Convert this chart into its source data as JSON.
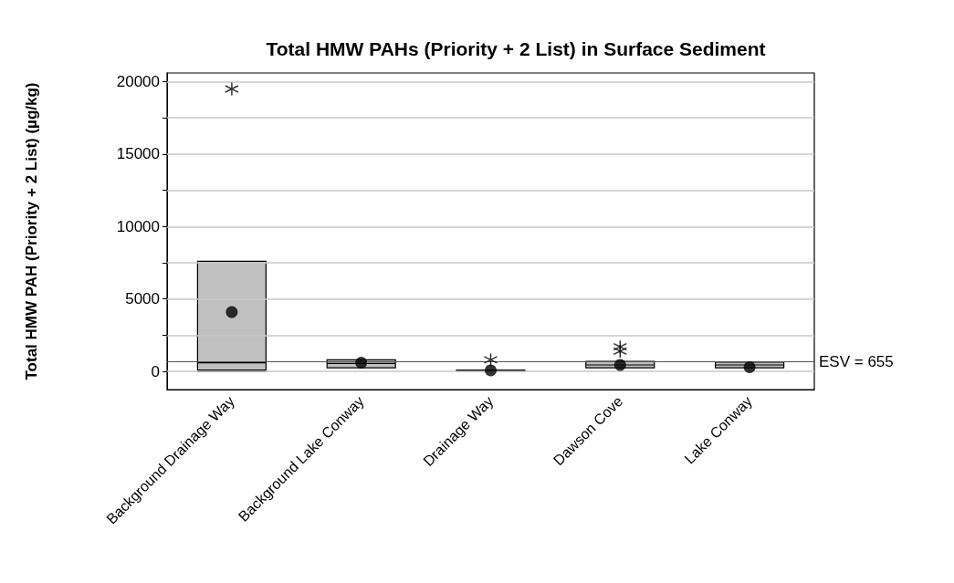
{
  "chart_data": {
    "type": "box",
    "title": "Total HMW PAHs (Priority + 2 List) in Surface Sediment",
    "ylabel": "Total HMW PAH (Priority + 2 List) (µg/kg)",
    "categories": [
      "Background Drainage Way",
      "Background Lake Conway",
      "Drainage Way",
      "Dawson Cove",
      "Lake Conway"
    ],
    "color": "#c0c0c0",
    "boxes": [
      {
        "low": 0,
        "q1": 100,
        "median": 600,
        "q3": 7600,
        "high": 7600,
        "mean": 4100,
        "outliers": [
          19500
        ]
      },
      {
        "low": 250,
        "q1": 250,
        "median": 550,
        "q3": 800,
        "high": 800,
        "mean": 600
      },
      {
        "low": 30,
        "q1": 30,
        "median": 60,
        "q3": 100,
        "high": 100,
        "mean": 80,
        "outliers": [
          800
        ]
      },
      {
        "low": 250,
        "q1": 250,
        "median": 450,
        "q3": 700,
        "high": 700,
        "mean": 450,
        "outliers": [
          1400,
          1700
        ]
      },
      {
        "low": 250,
        "q1": 250,
        "median": 450,
        "q3": 650,
        "high": 650,
        "mean": 300
      }
    ],
    "ylim": [
      -1250,
      20600
    ],
    "yticks": [
      0,
      {
        "value": 2500,
        "label": null
      },
      5000,
      {
        "value": 7500,
        "label": null
      },
      10000,
      {
        "value": 12500,
        "label": null
      },
      15000,
      {
        "value": 17500,
        "label": null
      },
      20000
    ],
    "ref_lines": [
      {
        "axis": "y",
        "value": 655,
        "label": "ESV = 655",
        "color": "#555555"
      }
    ],
    "grid": "y"
  }
}
